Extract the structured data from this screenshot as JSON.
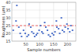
{
  "chart_data": {
    "type": "scatter",
    "xlabel": "Sample numbers",
    "ylabel": "Roughness (µm)",
    "x": [
      5,
      15,
      18,
      25,
      30,
      35,
      42,
      48,
      55,
      60,
      62,
      68,
      72,
      78,
      82,
      88,
      92,
      98,
      103,
      108,
      112,
      118,
      122,
      128,
      132,
      138,
      145,
      150,
      155,
      160,
      162,
      168,
      172,
      178,
      182,
      188,
      192,
      198,
      202,
      208,
      212,
      218
    ],
    "values": [
      22,
      28,
      38,
      24,
      20,
      18,
      22,
      20,
      18,
      19,
      26,
      24,
      21,
      20,
      18,
      19,
      20,
      22,
      25,
      21,
      20,
      27,
      24,
      22,
      19,
      18,
      20,
      19,
      21,
      28,
      24,
      23,
      20,
      30,
      22,
      21,
      24,
      26,
      23,
      21,
      25,
      22
    ],
    "color": "#5577CC",
    "marker": "square",
    "reference_line": {
      "y": 25,
      "color": "#EE4444",
      "line_style": "dashed"
    },
    "xlim": [
      0,
      230
    ],
    "ylim": [
      15,
      40
    ],
    "xticks": [
      50,
      100,
      150,
      200
    ],
    "yticks": [
      15,
      20,
      25,
      30,
      35,
      40
    ],
    "grid": true
  }
}
